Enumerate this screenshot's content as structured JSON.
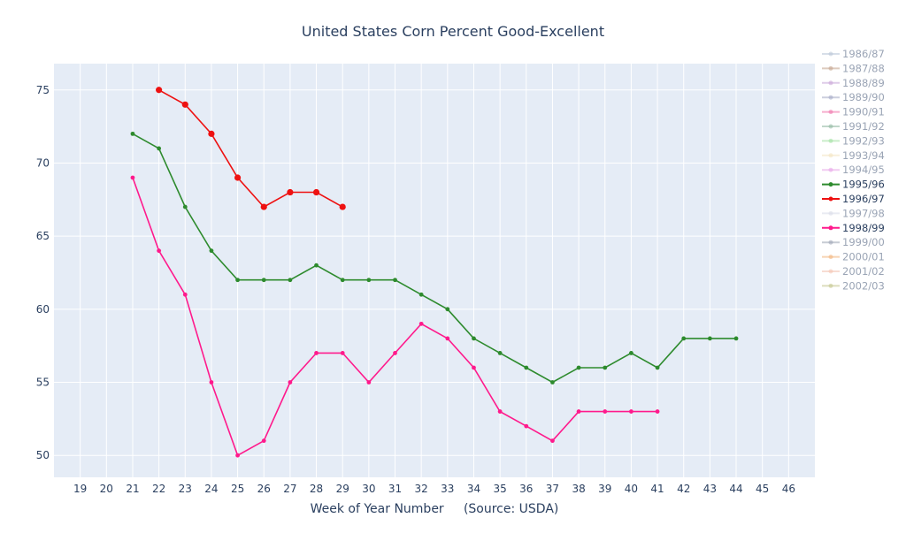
{
  "chart_data": {
    "type": "line",
    "title": "United States Corn Percent Good-Excellent",
    "xlabel": "Week of Year Number     (Source: USDA)",
    "ylabel": "",
    "xlim": [
      18,
      47
    ],
    "ylim": [
      48.5,
      76.8
    ],
    "x_ticks": [
      19,
      20,
      21,
      22,
      23,
      24,
      25,
      26,
      27,
      28,
      29,
      30,
      31,
      32,
      33,
      34,
      35,
      36,
      37,
      38,
      39,
      40,
      41,
      42,
      43,
      44,
      45,
      46
    ],
    "y_ticks": [
      50,
      55,
      60,
      65,
      70,
      75
    ],
    "grid": true,
    "legend_position": "right",
    "plot_bg": "#e5ecf6",
    "series": [
      {
        "name": "1986/87",
        "color": "#b8c4d6",
        "dimmed": true,
        "points": []
      },
      {
        "name": "1987/88",
        "color": "#c2a189",
        "dimmed": true,
        "points": []
      },
      {
        "name": "1988/89",
        "color": "#c6a3d6",
        "dimmed": true,
        "points": []
      },
      {
        "name": "1989/90",
        "color": "#a3a8c4",
        "dimmed": true,
        "points": []
      },
      {
        "name": "1990/91",
        "color": "#ef6fa7",
        "dimmed": true,
        "points": []
      },
      {
        "name": "1991/92",
        "color": "#8fb8a0",
        "dimmed": true,
        "points": []
      },
      {
        "name": "1992/93",
        "color": "#9fe09f",
        "dimmed": true,
        "points": []
      },
      {
        "name": "1993/94",
        "color": "#f3e3c0",
        "dimmed": true,
        "points": []
      },
      {
        "name": "1994/95",
        "color": "#e7a3e7",
        "dimmed": true,
        "points": []
      },
      {
        "name": "1995/96",
        "color": "#2e8b2e",
        "dimmed": false,
        "points": [
          [
            21,
            72
          ],
          [
            22,
            71
          ],
          [
            23,
            67
          ],
          [
            24,
            64
          ],
          [
            25,
            62
          ],
          [
            26,
            62
          ],
          [
            27,
            62
          ],
          [
            28,
            63
          ],
          [
            29,
            62
          ],
          [
            30,
            62
          ],
          [
            31,
            62
          ],
          [
            32,
            61
          ],
          [
            33,
            60
          ],
          [
            34,
            58
          ],
          [
            35,
            57
          ],
          [
            36,
            56
          ],
          [
            37,
            55
          ],
          [
            38,
            56
          ],
          [
            39,
            56
          ],
          [
            40,
            57
          ],
          [
            41,
            56
          ],
          [
            42,
            58
          ],
          [
            43,
            58
          ],
          [
            44,
            58
          ]
        ]
      },
      {
        "name": "1996/97",
        "color": "#ee1111",
        "dimmed": false,
        "points": [
          [
            22,
            75
          ],
          [
            23,
            74
          ],
          [
            24,
            72
          ],
          [
            25,
            69
          ],
          [
            26,
            67
          ],
          [
            27,
            68
          ],
          [
            28,
            68
          ],
          [
            29,
            67
          ]
        ]
      },
      {
        "name": "1997/98",
        "color": "#d8dbe8",
        "dimmed": true,
        "points": []
      },
      {
        "name": "1998/99",
        "color": "#ff1a8c",
        "dimmed": false,
        "points": [
          [
            21,
            69
          ],
          [
            22,
            64
          ],
          [
            23,
            61
          ],
          [
            24,
            55
          ],
          [
            25,
            50
          ],
          [
            26,
            51
          ],
          [
            27,
            55
          ],
          [
            28,
            57
          ],
          [
            29,
            57
          ],
          [
            30,
            55
          ],
          [
            31,
            57
          ],
          [
            32,
            59
          ],
          [
            33,
            58
          ],
          [
            34,
            56
          ],
          [
            35,
            53
          ],
          [
            36,
            52
          ],
          [
            37,
            51
          ],
          [
            38,
            53
          ],
          [
            39,
            53
          ],
          [
            40,
            53
          ],
          [
            41,
            53
          ]
        ]
      },
      {
        "name": "1999/00",
        "color": "#9aa3b2",
        "dimmed": true,
        "points": []
      },
      {
        "name": "2000/01",
        "color": "#f2b278",
        "dimmed": true,
        "points": []
      },
      {
        "name": "2001/02",
        "color": "#f4c3b0",
        "dimmed": true,
        "points": []
      },
      {
        "name": "2002/03",
        "color": "#c2c48a",
        "dimmed": true,
        "points": []
      }
    ]
  }
}
